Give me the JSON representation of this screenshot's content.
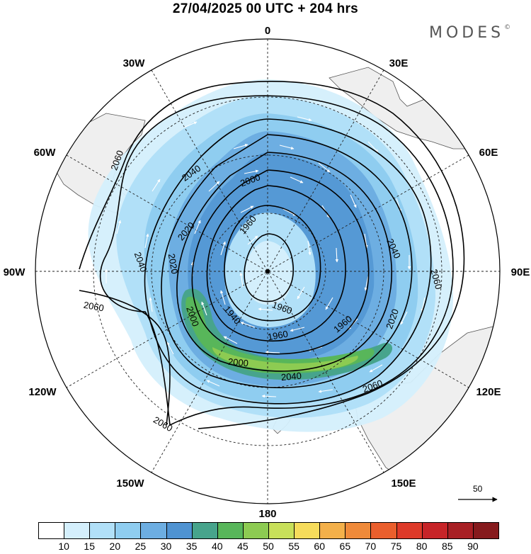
{
  "title": "27/04/2025  00 UTC  + 204 hrs",
  "brand": "MODES",
  "brand_mark": "©",
  "longitude_labels": {
    "top": "0",
    "right": "90E",
    "bottom": "180",
    "left": "90W",
    "ne30": "30E",
    "ne60": "60E",
    "se120": "120E",
    "se150": "150E",
    "sw150": "150W",
    "sw120": "120W",
    "nw60": "60W",
    "nw30": "30W"
  },
  "contour_labels": [
    "2060",
    "2040",
    "2060",
    "2040",
    "2000",
    "2020",
    "1960",
    "2040",
    "2020",
    "2060",
    "2060",
    "2000",
    "1940",
    "2020",
    "1960",
    "1960",
    "1960",
    "2000",
    "2040",
    "2060",
    "2060"
  ],
  "wind_scale_label": "50",
  "colorbar": {
    "ticks": [
      "10",
      "15",
      "20",
      "25",
      "30",
      "35",
      "40",
      "45",
      "50",
      "55",
      "60",
      "65",
      "70",
      "75",
      "80",
      "85",
      "90"
    ],
    "colors": [
      "#ffffff",
      "#d4effc",
      "#b1e0f8",
      "#8fcdf0",
      "#6daee2",
      "#4f93d2",
      "#47a48c",
      "#58b65a",
      "#8dcb52",
      "#c8e05a",
      "#f6dc5b",
      "#f3b04a",
      "#ef8a3a",
      "#ea5f2d",
      "#de3a29",
      "#c72428",
      "#a81f24",
      "#861a1d"
    ]
  }
}
